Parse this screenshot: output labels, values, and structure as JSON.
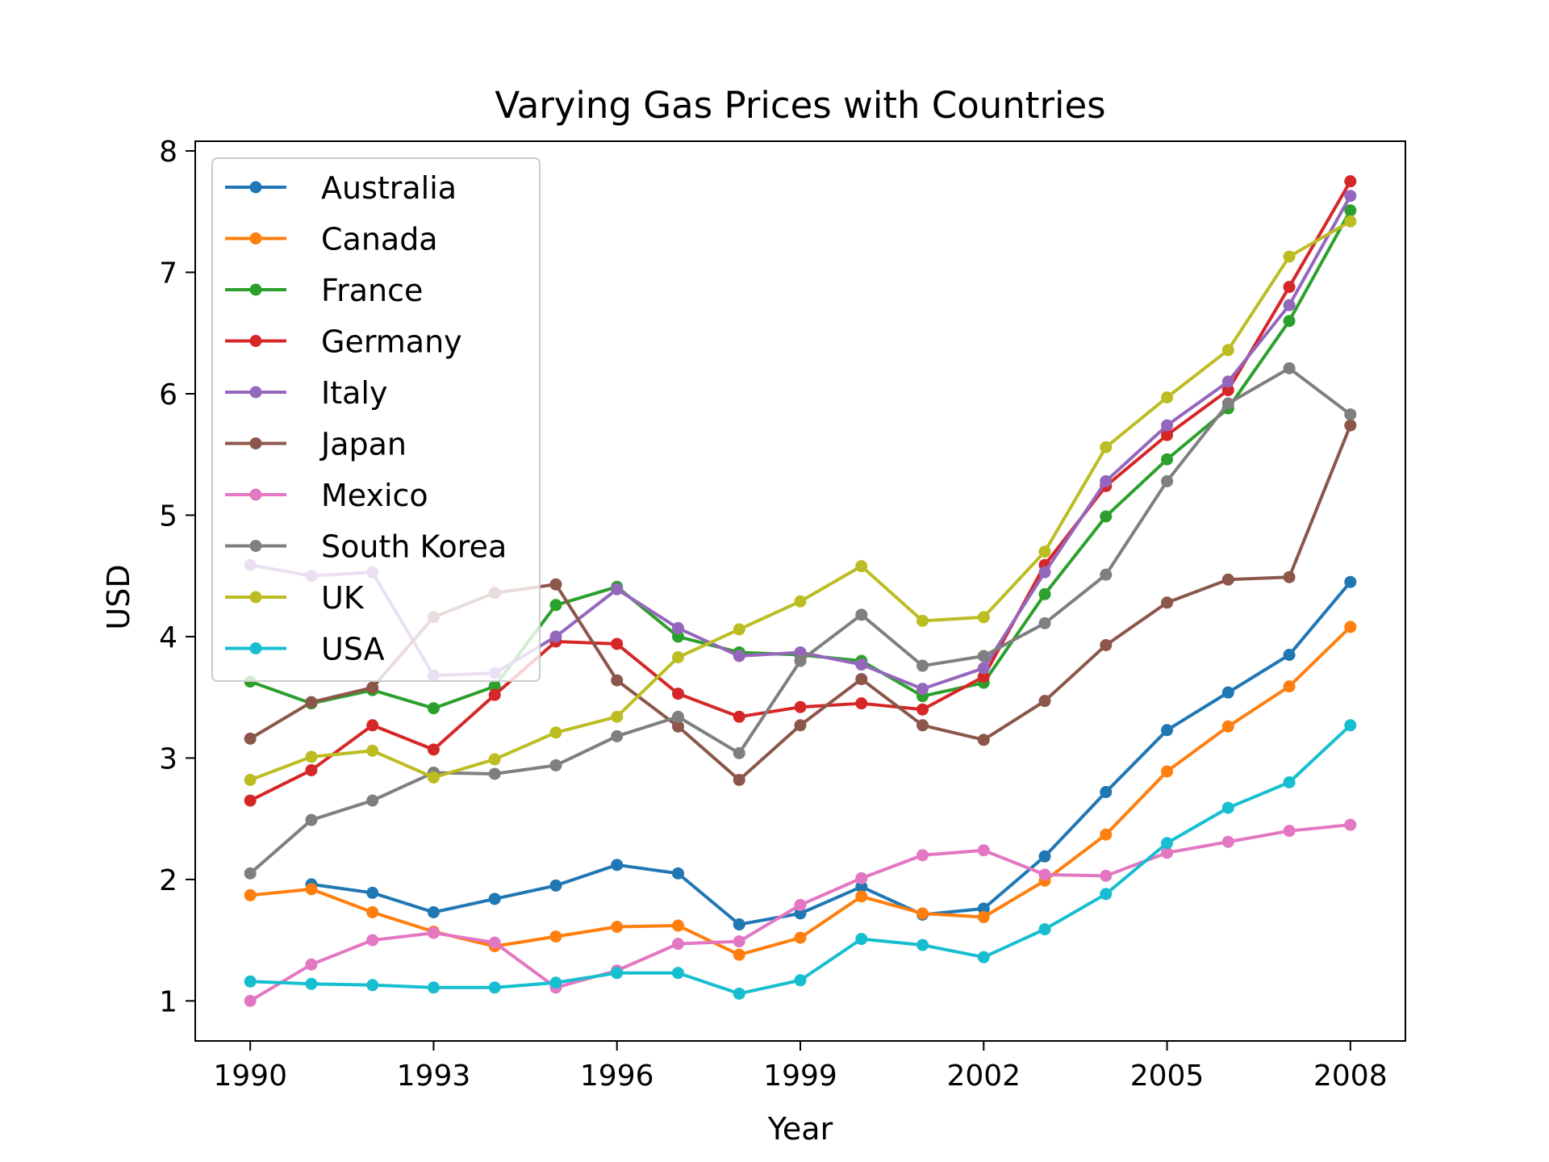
{
  "chart_data": {
    "type": "line",
    "title": "Varying Gas Prices with Countries",
    "xlabel": "Year",
    "ylabel": "USD",
    "xlim": [
      1989.1,
      2008.9
    ],
    "ylim": [
      0.67,
      8.08
    ],
    "xticks": [
      1990,
      1993,
      1996,
      1999,
      2002,
      2005,
      2008
    ],
    "yticks": [
      1,
      2,
      3,
      4,
      5,
      6,
      7,
      8
    ],
    "grid": false,
    "legend": "upper-left",
    "x": [
      1990,
      1991,
      1992,
      1993,
      1994,
      1995,
      1996,
      1997,
      1998,
      1999,
      2000,
      2001,
      2002,
      2003,
      2004,
      2005,
      2006,
      2007,
      2008
    ],
    "series": [
      {
        "name": "Australia",
        "color": "#1f77b4",
        "values": [
          null,
          1.96,
          1.89,
          1.73,
          1.84,
          1.95,
          2.12,
          2.05,
          1.63,
          1.72,
          1.94,
          1.71,
          1.76,
          2.19,
          2.72,
          3.23,
          3.54,
          3.85,
          4.45
        ]
      },
      {
        "name": "Canada",
        "color": "#ff7f0e",
        "values": [
          1.87,
          1.92,
          1.73,
          1.57,
          1.45,
          1.53,
          1.61,
          1.62,
          1.38,
          1.52,
          1.86,
          1.72,
          1.69,
          1.99,
          2.37,
          2.89,
          3.26,
          3.59,
          4.08
        ]
      },
      {
        "name": "France",
        "color": "#2ca02c",
        "values": [
          3.63,
          3.45,
          3.56,
          3.41,
          3.59,
          4.26,
          4.41,
          4.0,
          3.87,
          3.85,
          3.8,
          3.51,
          3.62,
          4.35,
          4.99,
          5.46,
          5.88,
          6.6,
          7.51
        ]
      },
      {
        "name": "Germany",
        "color": "#d62728",
        "values": [
          2.65,
          2.9,
          3.27,
          3.07,
          3.52,
          3.96,
          3.94,
          3.53,
          3.34,
          3.42,
          3.45,
          3.4,
          3.67,
          4.59,
          5.24,
          5.66,
          6.03,
          6.88,
          7.75
        ]
      },
      {
        "name": "Italy",
        "color": "#9467bd",
        "values": [
          4.59,
          4.5,
          4.53,
          3.68,
          3.7,
          4.0,
          4.39,
          4.07,
          3.84,
          3.87,
          3.77,
          3.57,
          3.74,
          4.53,
          5.28,
          5.74,
          6.1,
          6.73,
          7.63
        ]
      },
      {
        "name": "Japan",
        "color": "#8c564b",
        "values": [
          3.16,
          3.46,
          3.58,
          4.16,
          4.36,
          4.43,
          3.64,
          3.26,
          2.82,
          3.27,
          3.65,
          3.27,
          3.15,
          3.47,
          3.93,
          4.28,
          4.47,
          4.49,
          5.74
        ]
      },
      {
        "name": "Mexico",
        "color": "#e377c2",
        "values": [
          1.0,
          1.3,
          1.5,
          1.56,
          1.48,
          1.11,
          1.25,
          1.47,
          1.49,
          1.79,
          2.01,
          2.2,
          2.24,
          2.04,
          2.03,
          2.22,
          2.31,
          2.4,
          2.45
        ]
      },
      {
        "name": "South Korea",
        "color": "#7f7f7f",
        "values": [
          2.05,
          2.49,
          2.65,
          2.88,
          2.87,
          2.94,
          3.18,
          3.34,
          3.04,
          3.8,
          4.18,
          3.76,
          3.84,
          4.11,
          4.51,
          5.28,
          5.92,
          6.21,
          5.83
        ]
      },
      {
        "name": "UK",
        "color": "#bcbd22",
        "values": [
          2.82,
          3.01,
          3.06,
          2.84,
          2.99,
          3.21,
          3.34,
          3.83,
          4.06,
          4.29,
          4.58,
          4.13,
          4.16,
          4.7,
          5.56,
          5.97,
          6.36,
          7.13,
          7.42
        ]
      },
      {
        "name": "USA",
        "color": "#17becf",
        "values": [
          1.16,
          1.14,
          1.13,
          1.11,
          1.11,
          1.15,
          1.23,
          1.23,
          1.06,
          1.17,
          1.51,
          1.46,
          1.36,
          1.59,
          1.88,
          2.3,
          2.59,
          2.8,
          3.27
        ]
      }
    ]
  }
}
